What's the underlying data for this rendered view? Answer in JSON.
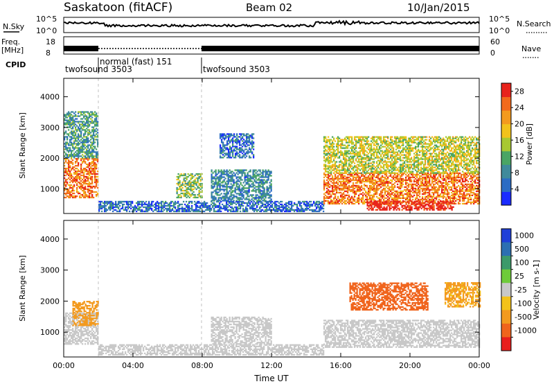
{
  "header": {
    "title": "Saskatoon (fitACF)",
    "beam": "Beam 02",
    "date": "10/Jan/2015"
  },
  "noise_panel": {
    "left_label": "N.Sky",
    "right_label": "N.Search",
    "left_ticks": [
      "10^5",
      "10^0"
    ],
    "right_ticks": [
      "10^5",
      "10^0"
    ]
  },
  "freq_panel": {
    "left_label_1": "Freq.",
    "left_label_2": "[MHz]",
    "right_label": "Nave",
    "left_ticks": [
      "18",
      "8"
    ],
    "right_ticks": [
      "60",
      "0"
    ]
  },
  "cpid": {
    "label": "CPID",
    "modes": [
      {
        "name": "twofsound 3503",
        "start_hour": 0
      },
      {
        "name": "normal (fast) 151",
        "start_hour": 2
      },
      {
        "name": "twofsound 3503",
        "start_hour": 8
      }
    ]
  },
  "colors": {
    "power": [
      "#1a2bff",
      "#2b6cc4",
      "#3f8a9b",
      "#4aa564",
      "#a8c832",
      "#f2c21b",
      "#f39a1e",
      "#f26a1c",
      "#e8231c"
    ],
    "velocity": [
      "#1f3fd8",
      "#2c6fb2",
      "#3c9a6a",
      "#6ecb3a",
      "#c8c8c8",
      "#f3c21a",
      "#f39a1e",
      "#f0641c",
      "#e81e1c"
    ]
  },
  "chart_data": [
    {
      "type": "heatmap",
      "title": "",
      "xlabel": "Time UT",
      "ylabel": "Slant Range [km]",
      "xlim": [
        0,
        24
      ],
      "ylim": [
        200,
        4600
      ],
      "x_ticks": [
        "00:00",
        "04:00",
        "08:00",
        "12:00",
        "16:00",
        "20:00",
        "00:00"
      ],
      "y_ticks": [
        "1000",
        "2000",
        "3000",
        "4000"
      ],
      "colorbar": {
        "label": "Power [dB]",
        "ticks": [
          "4",
          "8",
          "12",
          "16",
          "20",
          "24",
          "28"
        ],
        "range": [
          0,
          30
        ]
      },
      "regions": [
        {
          "t": [
            0.0,
            2.0
          ],
          "r": [
            700,
            2000
          ],
          "value": 24
        },
        {
          "t": [
            0.0,
            2.0
          ],
          "r": [
            2000,
            3500
          ],
          "value": 10
        },
        {
          "t": [
            2.0,
            15.0
          ],
          "r": [
            250,
            600
          ],
          "value": 6
        },
        {
          "t": [
            6.5,
            8.0
          ],
          "r": [
            700,
            1500
          ],
          "value": 14
        },
        {
          "t": [
            8.5,
            12.0
          ],
          "r": [
            600,
            1600
          ],
          "value": 8
        },
        {
          "t": [
            9.0,
            11.0
          ],
          "r": [
            2000,
            2800
          ],
          "value": 6
        },
        {
          "t": [
            15.0,
            24.0
          ],
          "r": [
            500,
            1500
          ],
          "value": 24
        },
        {
          "t": [
            15.0,
            24.0
          ],
          "r": [
            1500,
            2700
          ],
          "value": 16
        },
        {
          "t": [
            17.5,
            22.5
          ],
          "r": [
            300,
            600
          ],
          "value": 29
        }
      ]
    },
    {
      "type": "heatmap",
      "title": "",
      "xlabel": "Time UT",
      "ylabel": "Slant Range [km]",
      "xlim": [
        0,
        24
      ],
      "ylim": [
        200,
        4600
      ],
      "x_ticks": [
        "00:00",
        "04:00",
        "08:00",
        "12:00",
        "16:00",
        "20:00",
        "00:00"
      ],
      "y_ticks": [
        "1000",
        "2000",
        "3000",
        "4000"
      ],
      "colorbar": {
        "label": "Velocity [m s-1]",
        "ticks": [
          "1000",
          "500",
          "100",
          "25",
          "-25",
          "-100",
          "-500",
          "-1000"
        ],
        "range": [
          -1000,
          1000
        ]
      },
      "regions": [
        {
          "t": [
            0.0,
            2.0
          ],
          "r": [
            600,
            1600
          ],
          "value": 0
        },
        {
          "t": [
            0.5,
            2.0
          ],
          "r": [
            1200,
            2000
          ],
          "value": -300
        },
        {
          "t": [
            2.0,
            15.0
          ],
          "r": [
            250,
            600
          ],
          "value": 0
        },
        {
          "t": [
            8.5,
            12.0
          ],
          "r": [
            600,
            1500
          ],
          "value": 0
        },
        {
          "t": [
            15.0,
            24.0
          ],
          "r": [
            500,
            1400
          ],
          "value": 0
        },
        {
          "t": [
            16.5,
            21.0
          ],
          "r": [
            1700,
            2600
          ],
          "value": -700
        },
        {
          "t": [
            22.0,
            24.0
          ],
          "r": [
            1800,
            2600
          ],
          "value": -200
        }
      ]
    }
  ]
}
